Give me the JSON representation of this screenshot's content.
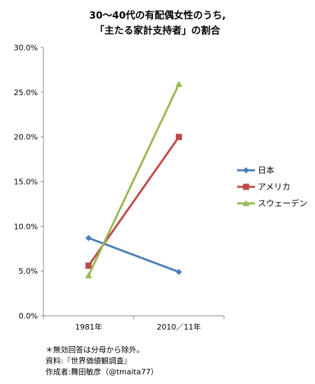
{
  "chart_data": {
    "type": "line",
    "title_lines": [
      "30〜40代の有配偶女性のうち,",
      "「主たる家計支持者」の割合"
    ],
    "xlabel": "",
    "ylabel": "",
    "categories": [
      "1981年",
      "2010／11年"
    ],
    "ylim": [
      0,
      0.3
    ],
    "yticks": [
      "0.0%",
      "5.0%",
      "10.0%",
      "15.0%",
      "20.0%",
      "25.0%",
      "30.0%"
    ],
    "grid": false,
    "legend_position": "right",
    "series": [
      {
        "name": "日本",
        "values": [
          0.087,
          0.049
        ],
        "color": "#4a7ebb",
        "marker": "diamond"
      },
      {
        "name": "アメリカ",
        "values": [
          0.056,
          0.2
        ],
        "color": "#be4b48",
        "marker": "square"
      },
      {
        "name": "スウェーデン",
        "values": [
          0.045,
          0.259
        ],
        "color": "#98b954",
        "marker": "triangle"
      }
    ]
  },
  "notes": [
    "＊無効回答は分母から除外。",
    "資料:『世界価値観調査』",
    "作成者:舞田敏彦（@tmaita77）"
  ]
}
